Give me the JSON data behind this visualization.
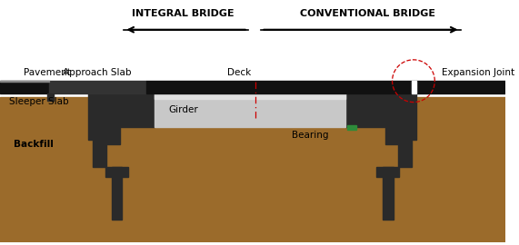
{
  "bg_color": "#ffffff",
  "soil_color": "#9B6B2B",
  "dark": "#2A2A2A",
  "dark2": "#3C3C3C",
  "mid_gray": "#707070",
  "light_gray": "#C8C8C8",
  "lighter_gray": "#E0E0E0",
  "white": "#FFFFFF",
  "green": "#2E8B3A",
  "red": "#CC0000",
  "labels": {
    "pavement": "Pavement",
    "approach_slab": "Approach Slab",
    "deck": "Deck",
    "girder": "Girder",
    "sleeper_slab": "Sleeper Slab",
    "backfill": "Backfill",
    "bearing": "Bearing",
    "expansion_joint": "Expansion Joint",
    "integral": "INTEGRAL BRIDGE",
    "conventional": "CONVENTIONAL BRIDGE"
  }
}
